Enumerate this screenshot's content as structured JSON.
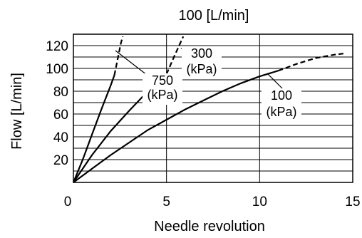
{
  "chart_data": {
    "type": "line",
    "title": "100 [L/min]",
    "xlabel": "Needle revolution",
    "ylabel": "Flow [L/min]",
    "xlim": [
      0,
      15
    ],
    "ylim": [
      0,
      130
    ],
    "x_ticks": [
      0,
      5,
      10,
      15
    ],
    "y_ticks": [
      20,
      40,
      60,
      80,
      100,
      120
    ],
    "grid": "horizontal",
    "series": [
      {
        "name": "750\n(kPa)",
        "solid": [
          [
            0,
            0
          ],
          [
            0.5,
            20
          ],
          [
            1,
            42
          ],
          [
            1.5,
            64
          ],
          [
            2,
            85
          ],
          [
            2.2,
            94
          ]
        ],
        "dashed": [
          [
            2.2,
            94
          ],
          [
            2.4,
            110
          ],
          [
            2.55,
            122
          ],
          [
            2.65,
            128
          ]
        ]
      },
      {
        "name": "300\n(kPa)",
        "solid": [
          [
            0,
            0
          ],
          [
            1,
            24
          ],
          [
            2,
            45
          ],
          [
            3,
            63
          ],
          [
            4,
            80
          ],
          [
            5,
            95
          ]
        ],
        "dashed": [
          [
            5,
            95
          ],
          [
            5.4,
            110
          ],
          [
            5.9,
            128
          ]
        ]
      },
      {
        "name": "100\n(kPa)",
        "solid": [
          [
            0,
            0
          ],
          [
            1,
            12
          ],
          [
            2,
            24
          ],
          [
            3,
            35
          ],
          [
            4,
            46
          ],
          [
            5,
            55
          ],
          [
            6,
            64
          ],
          [
            7,
            72
          ],
          [
            8,
            80
          ],
          [
            9,
            87
          ],
          [
            10,
            93
          ],
          [
            11,
            98
          ]
        ],
        "dashed": [
          [
            11,
            98
          ],
          [
            12,
            104
          ],
          [
            13,
            109
          ],
          [
            14,
            112
          ],
          [
            14.5,
            113
          ]
        ]
      }
    ],
    "annotations": [
      {
        "label": "750",
        "unit": "(kPa)",
        "series": "750\n(kPa)"
      },
      {
        "label": "300",
        "unit": "(kPa)",
        "series": "300\n(kPa)"
      },
      {
        "label": "100",
        "unit": "(kPa)",
        "series": "100\n(kPa)"
      }
    ]
  }
}
